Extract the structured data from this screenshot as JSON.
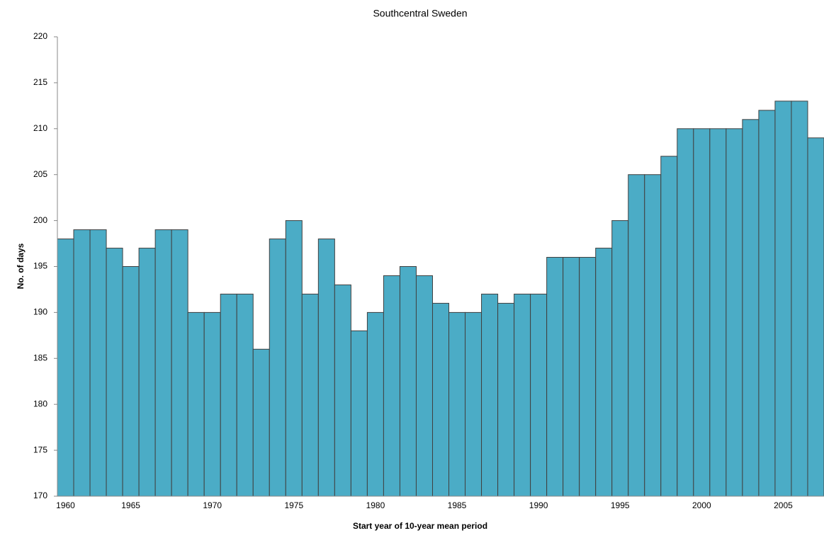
{
  "chart_data": {
    "type": "bar",
    "title": "Southcentral Sweden",
    "x_label": "Start year of 10-year mean period",
    "y_label": "No. of days",
    "categories": [
      "1960",
      null,
      null,
      null,
      "1965",
      null,
      null,
      null,
      null,
      "1970",
      null,
      null,
      null,
      null,
      "1975",
      null,
      null,
      null,
      null,
      "1980",
      null,
      null,
      null,
      null,
      "1985",
      null,
      null,
      null,
      null,
      "1990",
      null,
      null,
      null,
      null,
      "1995",
      null,
      null,
      null,
      null,
      "2000",
      null,
      null,
      null,
      null,
      "2005",
      null,
      null
    ],
    "values": [
      198,
      199,
      199,
      197,
      195,
      197,
      199,
      199,
      190,
      190,
      192,
      192,
      186,
      198,
      200,
      192,
      198,
      193,
      188,
      190,
      194,
      195,
      194,
      191,
      190,
      190,
      192,
      191,
      192,
      192,
      196,
      196,
      196,
      197,
      200,
      205,
      205,
      207,
      210,
      210,
      210,
      210,
      211,
      212,
      213,
      213,
      209
    ],
    "color": "#4bacc6",
    "ylim": [
      170,
      220
    ],
    "yticks": [
      170,
      175,
      180,
      185,
      190,
      195,
      200,
      205,
      210,
      215,
      220
    ]
  }
}
